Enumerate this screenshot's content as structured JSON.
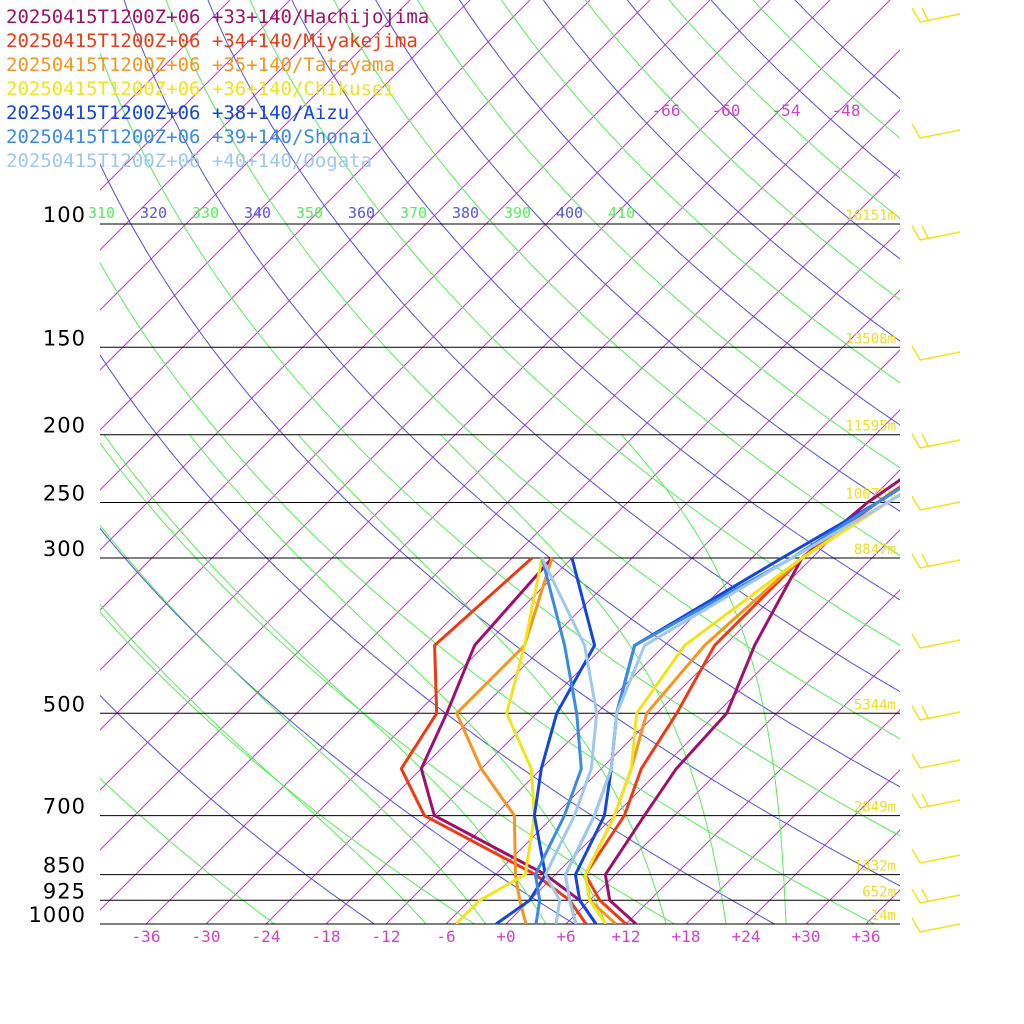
{
  "legend": [
    {
      "label": "20250415T1200Z+06 +33+140/Hachijojima",
      "color": "#a0106a"
    },
    {
      "label": "20250415T1200Z+06 +34+140/Miyakejima",
      "color": "#ee3a14"
    },
    {
      "label": "20250415T1200Z+06 +35+140/Tateyama",
      "color": "#f7951e"
    },
    {
      "label": "20250415T1200Z+06 +36+140/Chikusei",
      "color": "#f2e41a"
    },
    {
      "label": "20250415T1200Z+06 +38+140/Aizu",
      "color": "#1446dc"
    },
    {
      "label": "20250415T1200Z+06 +39+140/Shonai",
      "color": "#3a8ae6"
    },
    {
      "label": "20250415T1200Z+06 +40+140/Oogata",
      "color": "#9ec8ee"
    }
  ],
  "chart_data": {
    "type": "line",
    "title": "",
    "x_axis": {
      "unit": "°C",
      "range": [
        -40,
        40
      ],
      "ticks": [
        "-36",
        "-30",
        "-24",
        "-18",
        "-12",
        "-6",
        "+0",
        "+6",
        "+12",
        "+18",
        "+24",
        "+30",
        "+36"
      ]
    },
    "y_axis": {
      "unit": "hPa",
      "scale": "log",
      "range": [
        1000,
        100
      ],
      "ticks": [
        100,
        150,
        200,
        250,
        300,
        500,
        700,
        850,
        925,
        1000
      ]
    },
    "height_labels": [
      {
        "p": 100,
        "text": "16151m"
      },
      {
        "p": 150,
        "text": "13508m"
      },
      {
        "p": 200,
        "text": "11595m"
      },
      {
        "p": 250,
        "text": "10078m"
      },
      {
        "p": 300,
        "text": "8847m"
      },
      {
        "p": 500,
        "text": "5344m"
      },
      {
        "p": 700,
        "text": "2849m"
      },
      {
        "p": 850,
        "text": "1332m"
      },
      {
        "p": 925,
        "text": "652m"
      },
      {
        "p": 1000,
        "text": "14m"
      }
    ],
    "isotherm_labels_top": [
      "-66",
      "-60",
      "-54",
      "-48"
    ],
    "theta_labels": [
      {
        "text": "310",
        "color": "#55ee55"
      },
      {
        "text": "320",
        "color": "#5555dd"
      },
      {
        "text": "330",
        "color": "#55ee55"
      },
      {
        "text": "340",
        "color": "#5555dd"
      },
      {
        "text": "350",
        "color": "#55ee55"
      },
      {
        "text": "360",
        "color": "#5555dd"
      },
      {
        "text": "370",
        "color": "#55ee55"
      },
      {
        "text": "380",
        "color": "#5555dd"
      },
      {
        "text": "390",
        "color": "#55ee55"
      },
      {
        "text": "400",
        "color": "#5555dd"
      },
      {
        "text": "410",
        "color": "#55ee55"
      }
    ],
    "series": [
      {
        "name": "20250415T1200Z+06 +33+140/Hachijojima",
        "color": "#a0106a",
        "temperature": [
          [
            1000,
            13
          ],
          [
            925,
            8
          ],
          [
            850,
            5
          ],
          [
            700,
            3
          ],
          [
            600,
            1.5
          ],
          [
            500,
            1
          ],
          [
            400,
            -3
          ],
          [
            300,
            -7
          ],
          [
            250,
            -6
          ],
          [
            200,
            -3
          ],
          [
            150,
            0
          ],
          [
            100,
            4
          ],
          [
            70,
            6
          ],
          [
            60,
            10
          ],
          [
            50,
            14
          ]
        ],
        "dewpoint": [
          [
            1000,
            9
          ],
          [
            925,
            5
          ],
          [
            850,
            -1
          ],
          [
            700,
            -18
          ],
          [
            600,
            -24
          ],
          [
            500,
            -27
          ],
          [
            400,
            -31
          ],
          [
            300,
            -32
          ]
        ]
      },
      {
        "name": "20250415T1200Z+06 +34+140/Miyakejima",
        "color": "#ee3a14",
        "temperature": [
          [
            1000,
            12
          ],
          [
            925,
            7
          ],
          [
            850,
            3
          ],
          [
            700,
            1
          ],
          [
            600,
            -2
          ],
          [
            500,
            -4
          ],
          [
            400,
            -7
          ],
          [
            300,
            -7
          ],
          [
            250,
            -5
          ],
          [
            200,
            -2
          ],
          [
            150,
            2
          ],
          [
            100,
            6
          ],
          [
            70,
            6
          ],
          [
            60,
            11
          ],
          [
            50,
            14
          ]
        ],
        "dewpoint": [
          [
            1000,
            8
          ],
          [
            925,
            4
          ],
          [
            850,
            -2
          ],
          [
            700,
            -19
          ],
          [
            600,
            -26
          ],
          [
            500,
            -28
          ],
          [
            400,
            -35
          ],
          [
            300,
            -34
          ]
        ]
      },
      {
        "name": "20250415T1200Z+06 +35+140/Tateyama",
        "color": "#f7951e",
        "temperature": [
          [
            1000,
            11
          ],
          [
            925,
            6
          ],
          [
            850,
            3
          ],
          [
            700,
            0
          ],
          [
            600,
            -3
          ],
          [
            500,
            -7
          ],
          [
            400,
            -8
          ],
          [
            300,
            -7
          ],
          [
            250,
            -4
          ],
          [
            200,
            0
          ],
          [
            150,
            3
          ],
          [
            100,
            8
          ],
          [
            70,
            10
          ],
          [
            60,
            12
          ],
          [
            50,
            14
          ]
        ],
        "dewpoint": [
          [
            1000,
            2
          ],
          [
            925,
            -1
          ],
          [
            850,
            -4
          ],
          [
            700,
            -10
          ],
          [
            600,
            -18
          ],
          [
            500,
            -26
          ],
          [
            400,
            -26
          ],
          [
            300,
            -32
          ]
        ]
      },
      {
        "name": "20250415T1200Z+06 +36+140/Chikusei",
        "color": "#f2e41a",
        "temperature": [
          [
            1000,
            10
          ],
          [
            925,
            6
          ],
          [
            850,
            3
          ],
          [
            700,
            0
          ],
          [
            600,
            -3
          ],
          [
            500,
            -8
          ],
          [
            400,
            -10
          ],
          [
            300,
            -7
          ],
          [
            250,
            -4
          ],
          [
            200,
            0
          ],
          [
            150,
            4
          ],
          [
            100,
            9
          ],
          [
            70,
            12
          ],
          [
            60,
            13
          ],
          [
            50,
            13
          ]
        ],
        "dewpoint": [
          [
            1000,
            -5
          ],
          [
            925,
            -5
          ],
          [
            850,
            -3
          ],
          [
            700,
            -8
          ],
          [
            600,
            -13
          ],
          [
            500,
            -21
          ],
          [
            400,
            -26
          ],
          [
            300,
            -33
          ]
        ]
      },
      {
        "name": "20250415T1200Z+06 +38+140/Aizu",
        "color": "#1446dc",
        "temperature": [
          [
            1000,
            9
          ],
          [
            925,
            5
          ],
          [
            850,
            2
          ],
          [
            700,
            -1
          ],
          [
            600,
            -5
          ],
          [
            500,
            -10
          ],
          [
            400,
            -15
          ],
          [
            300,
            -9
          ],
          [
            250,
            -5
          ],
          [
            200,
            -1
          ],
          [
            150,
            4
          ],
          [
            100,
            11
          ],
          [
            70,
            11
          ],
          [
            60,
            13
          ],
          [
            50,
            14
          ]
        ],
        "dewpoint": [
          [
            1000,
            -1
          ],
          [
            925,
            0
          ],
          [
            850,
            -1
          ],
          [
            700,
            -8
          ],
          [
            600,
            -12
          ],
          [
            500,
            -16
          ],
          [
            400,
            -19
          ],
          [
            300,
            -30
          ]
        ]
      },
      {
        "name": "20250415T1200Z+06 +39+140/Shonai",
        "color": "#3a8ae6",
        "temperature": [
          [
            1000,
            7
          ],
          [
            925,
            4
          ],
          [
            850,
            1
          ],
          [
            700,
            -2
          ],
          [
            600,
            -5
          ],
          [
            500,
            -10
          ],
          [
            400,
            -15
          ],
          [
            300,
            -8
          ],
          [
            250,
            -5
          ],
          [
            200,
            -1
          ],
          [
            150,
            3
          ],
          [
            100,
            12
          ],
          [
            70,
            12
          ],
          [
            60,
            12
          ],
          [
            50,
            14
          ]
        ],
        "dewpoint": [
          [
            1000,
            3
          ],
          [
            925,
            1
          ],
          [
            850,
            -2
          ],
          [
            700,
            -5
          ],
          [
            600,
            -8
          ],
          [
            500,
            -14
          ],
          [
            400,
            -22
          ],
          [
            300,
            -33
          ]
        ]
      },
      {
        "name": "20250415T1200Z+06 +40+140/Oogata",
        "color": "#9ec8ee",
        "temperature": [
          [
            1000,
            7
          ],
          [
            925,
            4
          ],
          [
            850,
            1
          ],
          [
            700,
            -2
          ],
          [
            600,
            -5
          ],
          [
            500,
            -10
          ],
          [
            400,
            -14
          ],
          [
            300,
            -8
          ],
          [
            250,
            -4
          ],
          [
            200,
            0
          ],
          [
            150,
            4
          ],
          [
            100,
            12
          ],
          [
            70,
            12
          ],
          [
            60,
            13
          ],
          [
            50,
            14
          ]
        ],
        "dewpoint": [
          [
            1000,
            5
          ],
          [
            925,
            3
          ],
          [
            850,
            -1
          ],
          [
            700,
            -4
          ],
          [
            600,
            -7
          ],
          [
            500,
            -12
          ],
          [
            400,
            -20
          ],
          [
            300,
            -33
          ]
        ]
      }
    ],
    "wind_barb_color": "#f2e41a"
  }
}
